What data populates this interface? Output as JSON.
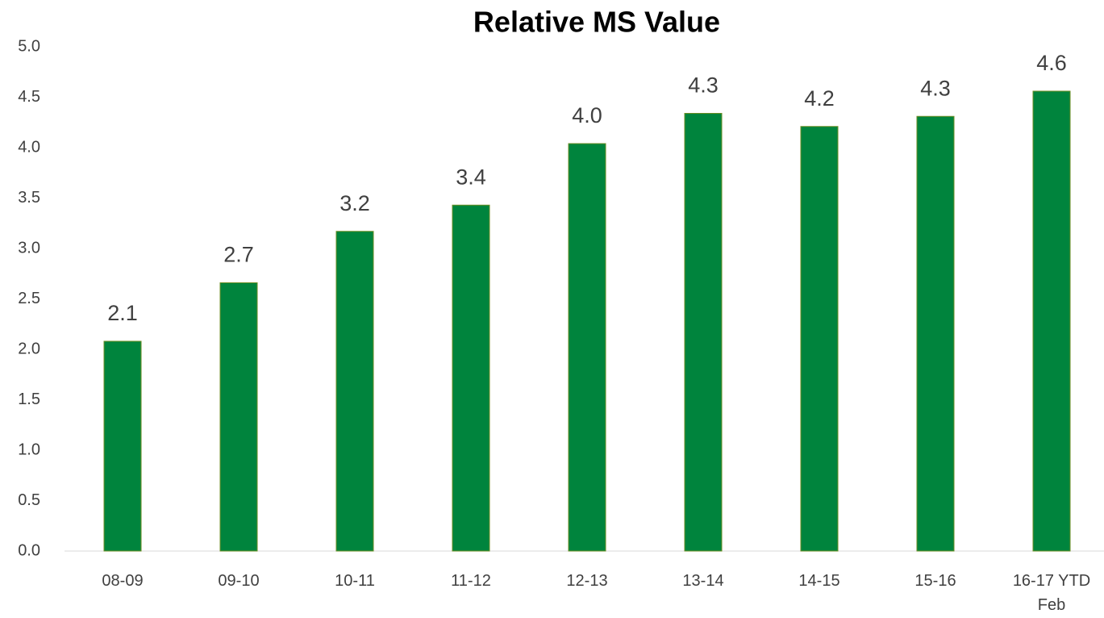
{
  "chart_data": {
    "type": "bar",
    "title": "Relative MS Value",
    "categories": [
      "08-09",
      "09-10",
      "10-11",
      "11-12",
      "12-13",
      "13-14",
      "14-15",
      "15-16",
      "16-17 YTD Feb"
    ],
    "values": [
      2.08,
      2.66,
      3.17,
      3.43,
      4.04,
      4.34,
      4.21,
      4.31,
      4.56
    ],
    "value_labels": [
      "2.1",
      "2.7",
      "3.2",
      "3.4",
      "4.0",
      "4.3",
      "4.2",
      "4.3",
      "4.6"
    ],
    "color": "#00843d",
    "ylim": [
      0,
      5
    ],
    "yticks": [
      {
        "value": 0,
        "label": "0.0"
      },
      0.5,
      {
        "value": 1,
        "label": "1.0"
      },
      1.5,
      {
        "value": 2,
        "label": "2.0"
      },
      2.5,
      {
        "value": 3,
        "label": "3.0"
      },
      3.5,
      {
        "value": 4,
        "label": "4.0"
      },
      4.5,
      {
        "value": 5,
        "label": "5.0"
      }
    ],
    "grid": false
  }
}
